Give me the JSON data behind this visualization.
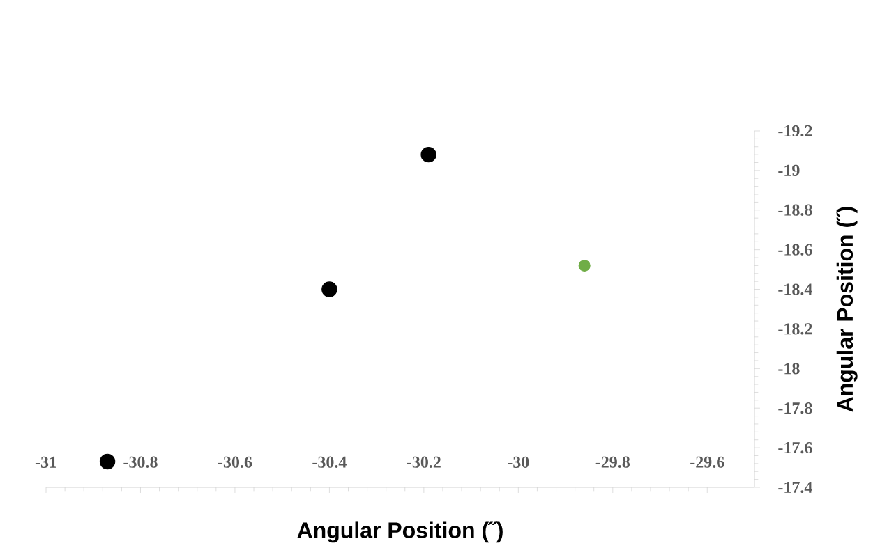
{
  "chart_data": {
    "type": "scatter",
    "xlabel": "Angular Position (˝)",
    "ylabel": "Angular Position (˝)",
    "xlim": [
      -31,
      -29.5
    ],
    "ylim": [
      -17.4,
      -19.2
    ],
    "xticks": [
      -31,
      -30.8,
      -30.6,
      -30.4,
      -30.2,
      -30,
      -29.8,
      -29.6
    ],
    "yticks": [
      -17.4,
      -17.6,
      -17.8,
      -18,
      -18.2,
      -18.4,
      -18.6,
      -18.8,
      -19,
      -19.2
    ],
    "grid": false,
    "marker": "circle",
    "series": [
      {
        "color": "#000000",
        "x": [
          -30.87,
          -30.4,
          -30.19
        ],
        "values": [
          -17.53,
          -18.4,
          -19.08
        ]
      },
      {
        "color": "#70ad47",
        "x": [
          -29.86
        ],
        "values": [
          -18.52
        ]
      }
    ]
  }
}
